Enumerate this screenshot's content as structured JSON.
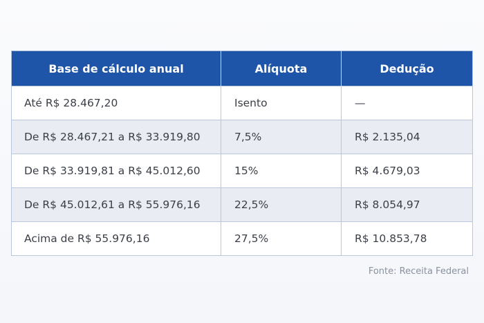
{
  "table": {
    "headers": [
      "Base de cálculo anual",
      "Alíquota",
      "Dedução"
    ],
    "rows": [
      [
        "Até R$ 28.467,20",
        "Isento",
        "—"
      ],
      [
        "De R$ 28.467,21 a R$ 33.919,80",
        "7,5%",
        "R$ 2.135,04"
      ],
      [
        "De R$ 33.919,81 a R$ 45.012,60",
        "15%",
        "R$ 4.679,03"
      ],
      [
        "De R$ 45.012,61 a R$ 55.976,16",
        "22,5%",
        "R$ 8.054,97"
      ],
      [
        "Acima de R$ 55.976,16",
        "27,5%",
        "R$ 10.853,78"
      ]
    ]
  },
  "source": "Fonte: Receita Federal",
  "colors": {
    "header_bg": "#1f55a9",
    "header_text": "#ffffff",
    "stripe": "#e9ecf2",
    "border": "#b9c7dd"
  }
}
